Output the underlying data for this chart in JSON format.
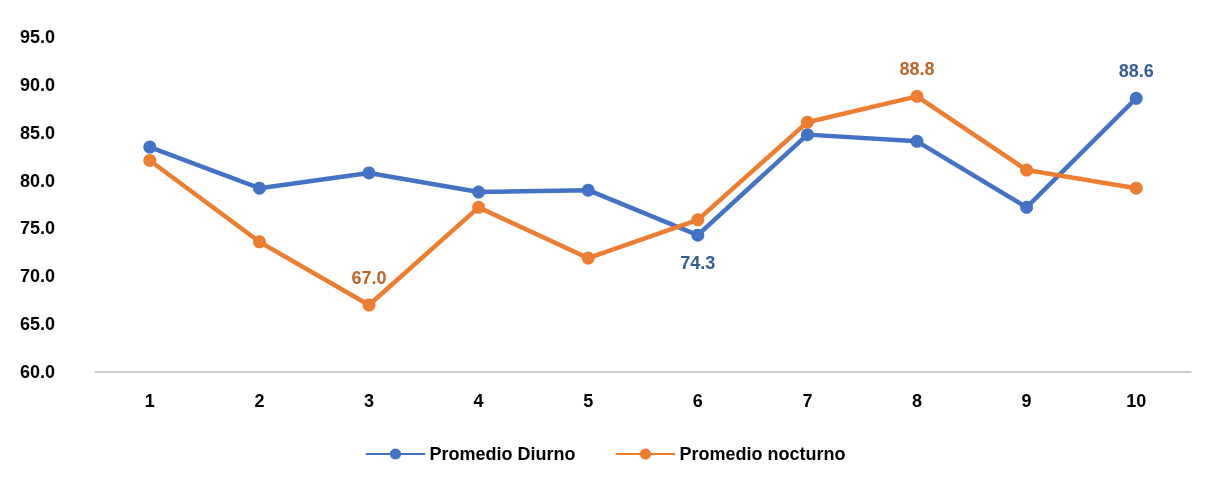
{
  "chart_data": {
    "type": "line",
    "categories": [
      "1",
      "2",
      "3",
      "4",
      "5",
      "6",
      "7",
      "8",
      "9",
      "10"
    ],
    "series": [
      {
        "name": "Promedio Diurno",
        "color": "#4472c4",
        "values": [
          83.5,
          79.2,
          80.8,
          78.8,
          79.0,
          74.3,
          84.8,
          84.1,
          77.2,
          88.6
        ],
        "value_labels": [
          null,
          null,
          null,
          null,
          null,
          "74.3",
          null,
          null,
          null,
          "88.6"
        ]
      },
      {
        "name": "Promedio nocturno",
        "color": "#ed7d31",
        "values": [
          82.1,
          73.6,
          67.0,
          77.2,
          71.9,
          75.9,
          86.1,
          88.8,
          81.1,
          79.2
        ],
        "value_labels": [
          null,
          null,
          "67.0",
          null,
          null,
          null,
          null,
          "88.8",
          null,
          null
        ]
      }
    ],
    "ylim": [
      60,
      95
    ],
    "yticks": [
      {
        "value": 60,
        "label": "60.0"
      },
      {
        "value": 65,
        "label": "65.0"
      },
      {
        "value": 70,
        "label": "70.0"
      },
      {
        "value": 75,
        "label": "75.0"
      },
      {
        "value": 80,
        "label": "80.0"
      },
      {
        "value": 85,
        "label": "85.0"
      },
      {
        "value": 90,
        "label": "90.0"
      },
      {
        "value": 95,
        "label": "95.0"
      }
    ],
    "grid": false,
    "legend": "bottom",
    "marker": "circle",
    "line_style": "solid"
  }
}
